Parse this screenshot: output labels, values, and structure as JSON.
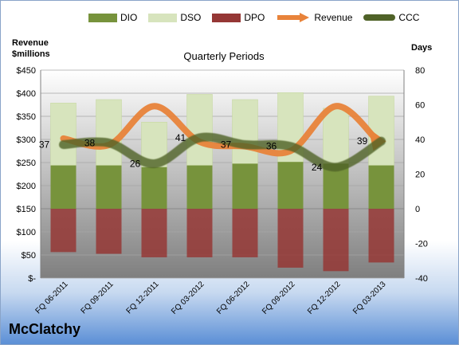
{
  "company": "McClatchy",
  "legend": [
    {
      "name": "DIO",
      "color": "#77933c",
      "kind": "box"
    },
    {
      "name": "DSO",
      "color": "#d7e4bd",
      "kind": "box"
    },
    {
      "name": "DPO",
      "color": "#953735",
      "kind": "box"
    },
    {
      "name": "Revenue",
      "color": "#e8833a",
      "kind": "arrow"
    },
    {
      "name": "CCC",
      "color": "#4f6228",
      "kind": "line"
    }
  ],
  "chart_data": {
    "type": "bar",
    "title": "Quarterly Periods",
    "ylabel_left": "Revenue\n$millions",
    "ylabel_right": "Days",
    "categories": [
      "FQ 06-2011",
      "FQ 09-2011",
      "FQ 12-2011",
      "FQ 03-2012",
      "FQ 06-2012",
      "FQ 09-2012",
      "FQ 12-2012",
      "FQ 03-2013"
    ],
    "left_axis": {
      "min": 0,
      "max": 450,
      "step": 50,
      "tick_labels": [
        "$-",
        "$50",
        "$100",
        "$150",
        "$200",
        "$250",
        "$300",
        "$350",
        "$400",
        "$450"
      ]
    },
    "right_axis": {
      "min": -40,
      "max": 80,
      "step": 20,
      "tick_labels": [
        "-40",
        "-20",
        "0",
        "20",
        "40",
        "60",
        "80"
      ]
    },
    "series": [
      {
        "name": "DIO",
        "axis": "right",
        "values": [
          25,
          25,
          24,
          25,
          26,
          27,
          26,
          25
        ]
      },
      {
        "name": "DSO",
        "axis": "right",
        "values": [
          36,
          38,
          26,
          41,
          37,
          40,
          32,
          40
        ]
      },
      {
        "name": "DPO",
        "axis": "right",
        "values": [
          -25,
          -26,
          -28,
          -28,
          -28,
          -34,
          -36,
          -31
        ]
      },
      {
        "name": "Revenue",
        "axis": "left",
        "values": [
          302,
          288,
          372,
          295,
          285,
          275,
          372,
          303
        ]
      },
      {
        "name": "CCC",
        "axis": "right",
        "values": [
          37,
          38,
          26,
          41,
          37,
          36,
          24,
          39
        ]
      }
    ],
    "ccc_labels": [
      "37",
      "38",
      "26",
      "41",
      "37",
      "36",
      "24",
      "39"
    ]
  }
}
